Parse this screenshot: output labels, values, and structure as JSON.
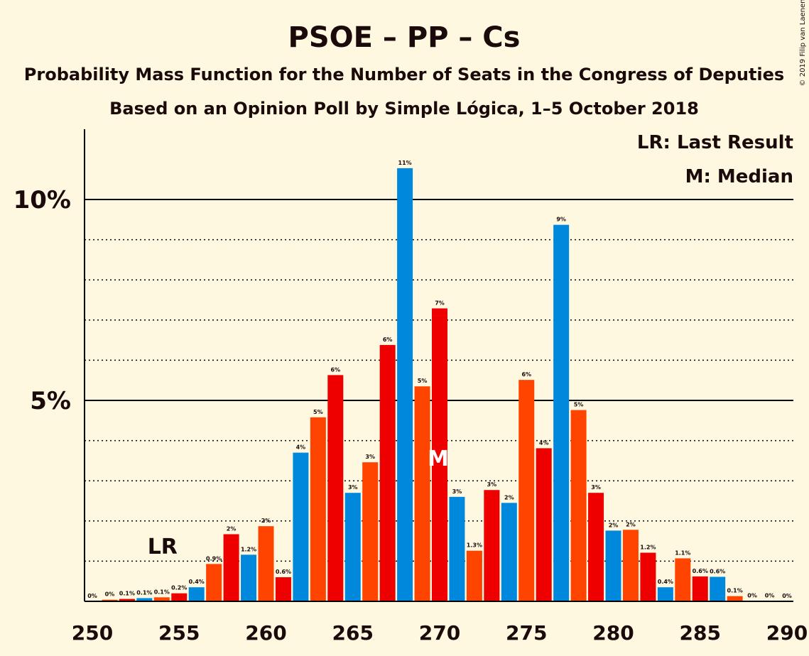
{
  "title": "PSOE – PP – Cs",
  "subtitle1": "Probability Mass Function for the Number of Seats in the Congress of Deputies",
  "subtitle2": "Based on an Opinion Poll by Simple Lógica, 1–5 October 2018",
  "copyright": "© 2019 Filip van Laenen",
  "legend": {
    "lr": "LR: Last Result",
    "median": "M: Median"
  },
  "markers": {
    "lr_text": "LR",
    "median_text": "M"
  },
  "colors": {
    "background": "#fff8e1",
    "blue": "#0088dd",
    "orange": "#ff4400",
    "red": "#ee0000",
    "axis": "#000000"
  },
  "chart_data": {
    "type": "bar",
    "xlim": [
      250,
      290
    ],
    "ylim": [
      0,
      11.8
    ],
    "x_ticks": [
      "250",
      "255",
      "260",
      "265",
      "270",
      "275",
      "280",
      "285",
      "290"
    ],
    "y_ticks": [
      {
        "value": 5,
        "label": "5%"
      },
      {
        "value": 10,
        "label": "10%"
      }
    ],
    "solid_gridlines": [
      5,
      10
    ],
    "dotted_gridlines": [
      1,
      2,
      3,
      4,
      6,
      7,
      8,
      9
    ],
    "last_result_seat": 254,
    "median_seat": 270,
    "bars": [
      {
        "x": 251,
        "value": 0.04,
        "label": "0%",
        "color": "orange"
      },
      {
        "x": 252,
        "value": 0.06,
        "label": "0.1%",
        "color": "red"
      },
      {
        "x": 253,
        "value": 0.08,
        "label": "0.1%",
        "color": "blue"
      },
      {
        "x": 254,
        "value": 0.1,
        "label": "0.1%",
        "color": "orange"
      },
      {
        "x": 255,
        "value": 0.2,
        "label": "0.2%",
        "color": "red"
      },
      {
        "x": 256,
        "value": 0.35,
        "label": "0.4%",
        "color": "blue"
      },
      {
        "x": 257,
        "value": 0.93,
        "label": "0.9%",
        "color": "orange"
      },
      {
        "x": 258,
        "value": 1.67,
        "label": "2%",
        "color": "red"
      },
      {
        "x": 259,
        "value": 1.16,
        "label": "1.2%",
        "color": "blue"
      },
      {
        "x": 260,
        "value": 1.87,
        "label": "2%",
        "color": "orange"
      },
      {
        "x": 261,
        "value": 0.6,
        "label": "0.6%",
        "color": "red"
      },
      {
        "x": 262,
        "value": 3.7,
        "label": "4%",
        "color": "blue"
      },
      {
        "x": 263,
        "value": 4.58,
        "label": "5%",
        "color": "orange"
      },
      {
        "x": 264,
        "value": 5.63,
        "label": "6%",
        "color": "red"
      },
      {
        "x": 265,
        "value": 2.7,
        "label": "3%",
        "color": "blue"
      },
      {
        "x": 266,
        "value": 3.46,
        "label": "3%",
        "color": "orange"
      },
      {
        "x": 267,
        "value": 6.38,
        "label": "6%",
        "color": "red"
      },
      {
        "x": 268,
        "value": 10.78,
        "label": "11%",
        "color": "blue"
      },
      {
        "x": 269,
        "value": 5.35,
        "label": "5%",
        "color": "orange"
      },
      {
        "x": 270,
        "value": 7.29,
        "label": "7%",
        "color": "red"
      },
      {
        "x": 271,
        "value": 2.6,
        "label": "3%",
        "color": "blue"
      },
      {
        "x": 272,
        "value": 1.26,
        "label": "1.3%",
        "color": "orange"
      },
      {
        "x": 273,
        "value": 2.77,
        "label": "3%",
        "color": "red"
      },
      {
        "x": 274,
        "value": 2.45,
        "label": "2%",
        "color": "blue"
      },
      {
        "x": 275,
        "value": 5.51,
        "label": "6%",
        "color": "orange"
      },
      {
        "x": 276,
        "value": 3.81,
        "label": "4%",
        "color": "red"
      },
      {
        "x": 277,
        "value": 9.37,
        "label": "9%",
        "color": "blue"
      },
      {
        "x": 278,
        "value": 4.76,
        "label": "5%",
        "color": "orange"
      },
      {
        "x": 279,
        "value": 2.7,
        "label": "3%",
        "color": "red"
      },
      {
        "x": 280,
        "value": 1.76,
        "label": "2%",
        "color": "blue"
      },
      {
        "x": 281,
        "value": 1.78,
        "label": "2%",
        "color": "orange"
      },
      {
        "x": 282,
        "value": 1.21,
        "label": "1.2%",
        "color": "red"
      },
      {
        "x": 283,
        "value": 0.35,
        "label": "0.4%",
        "color": "blue"
      },
      {
        "x": 284,
        "value": 1.07,
        "label": "1.1%",
        "color": "orange"
      },
      {
        "x": 285,
        "value": 0.62,
        "label": "0.6%",
        "color": "red"
      },
      {
        "x": 286,
        "value": 0.61,
        "label": "0.6%",
        "color": "blue"
      },
      {
        "x": 287,
        "value": 0.13,
        "label": "0.1%",
        "color": "orange"
      },
      {
        "x": 288,
        "value": 0.01,
        "label": "0%",
        "color": "red"
      },
      {
        "x": 289,
        "value": 0.01,
        "label": "0%",
        "color": "blue"
      },
      {
        "x": 290,
        "value": 0.0,
        "label": "0%",
        "color": "orange"
      }
    ],
    "zero_labels_x": [
      250
    ]
  }
}
